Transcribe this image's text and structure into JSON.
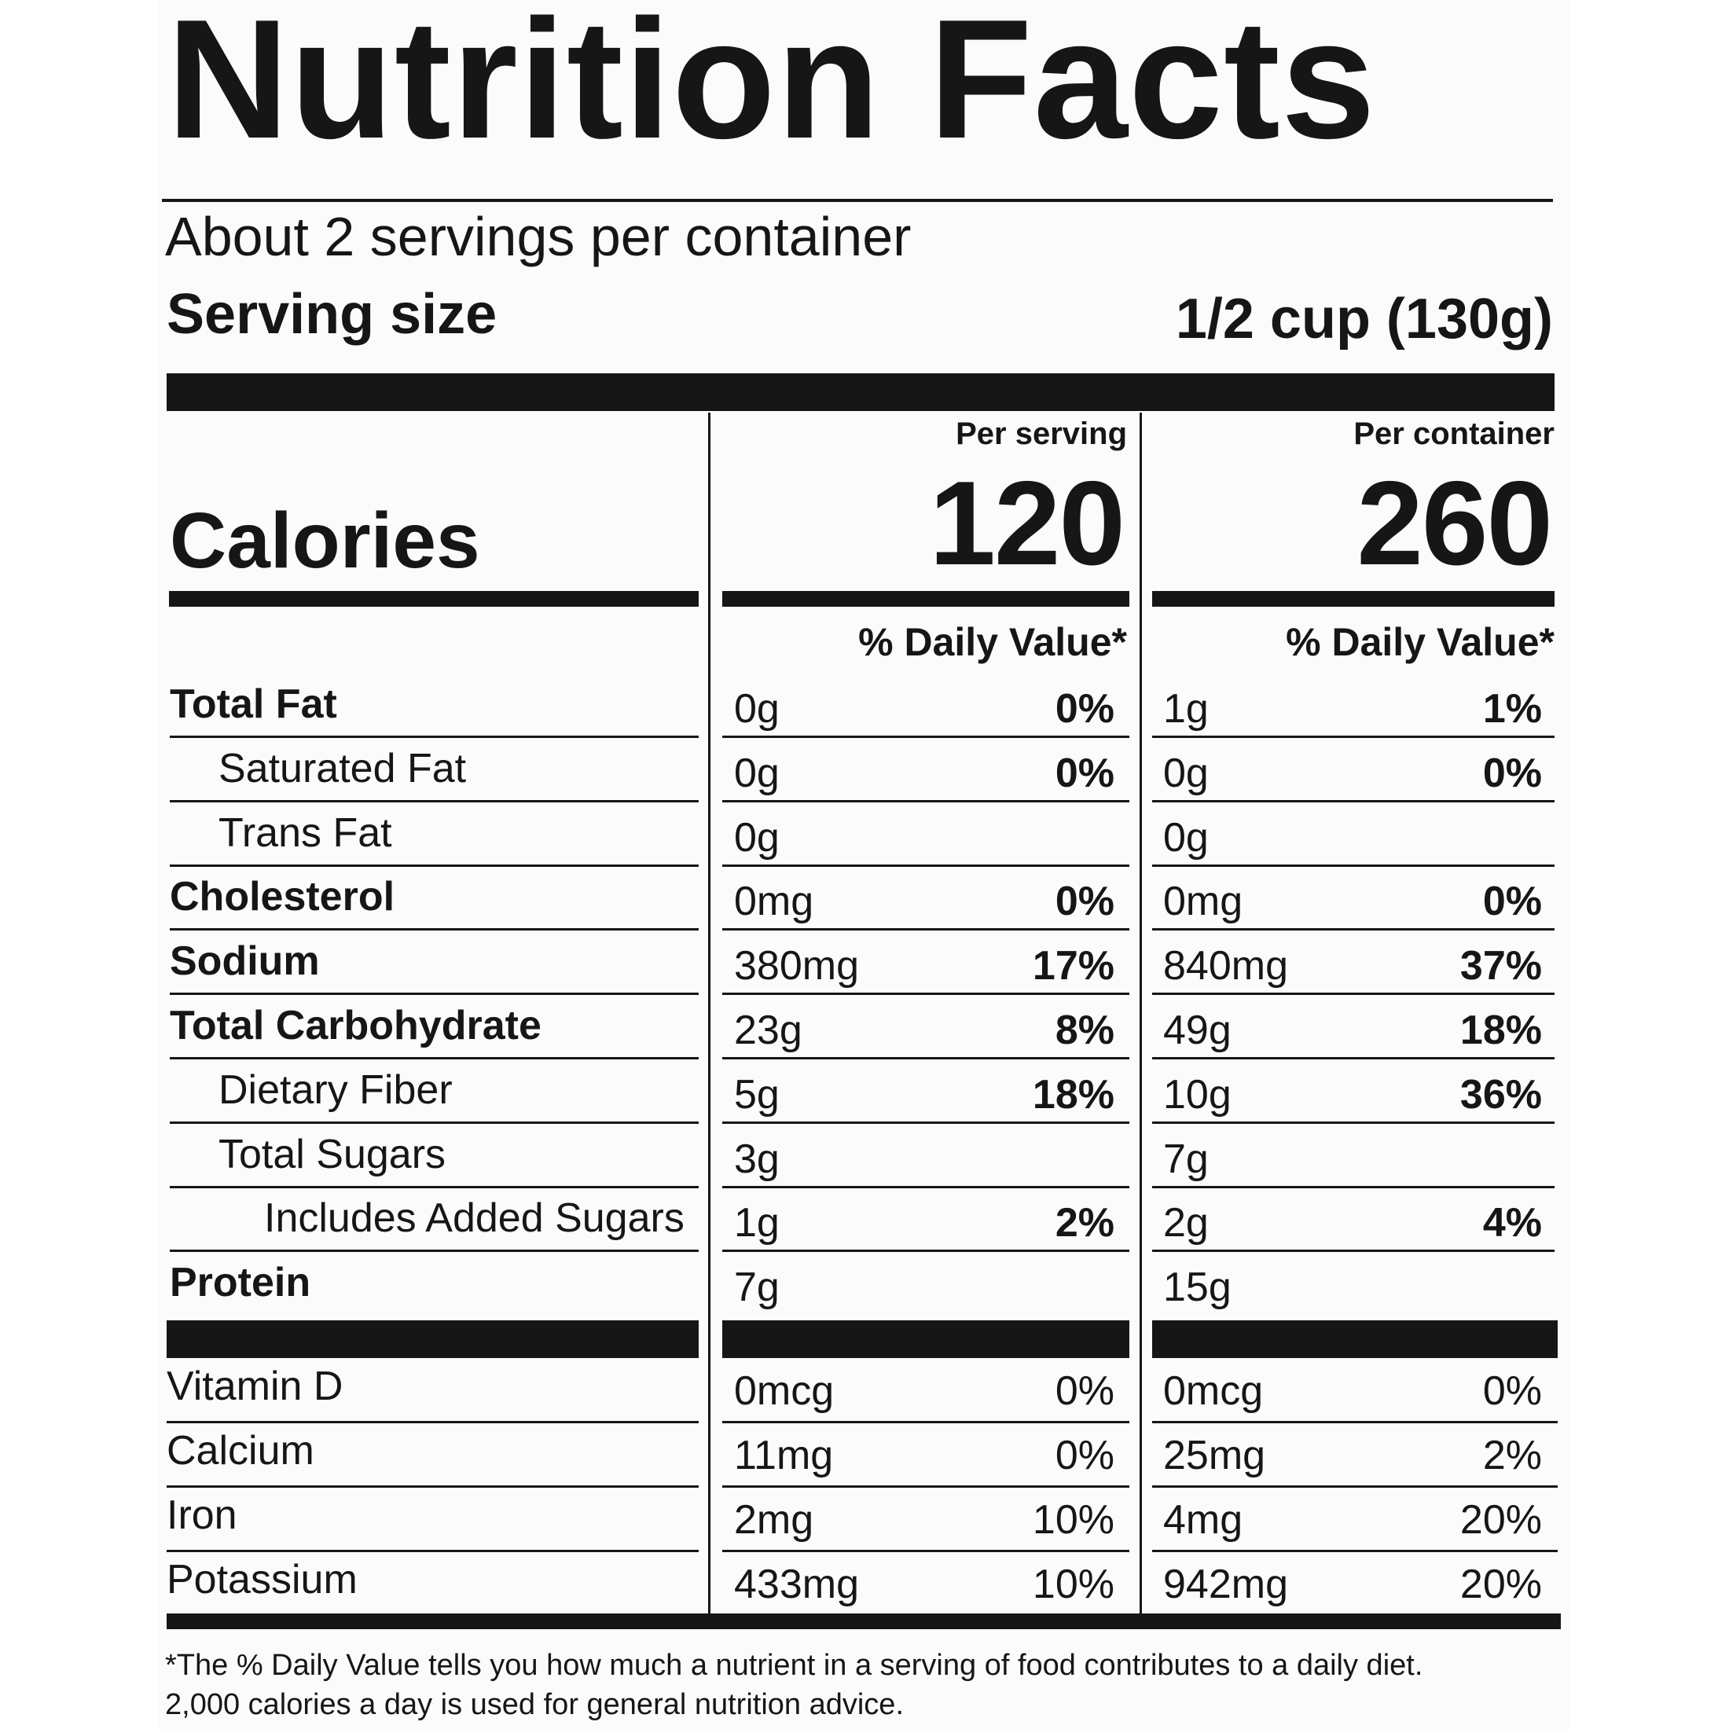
{
  "title": "Nutrition Facts",
  "servings_per_container": "About 2 servings per container",
  "serving_size": {
    "label": "Serving size",
    "value": "1/2 cup (130g)"
  },
  "columns": {
    "per_serving": {
      "header": "Per serving",
      "calories": "120",
      "dv_header": "% Daily Value*"
    },
    "per_container": {
      "header": "Per container",
      "calories": "260",
      "dv_header": "% Daily Value*"
    }
  },
  "calories_label": "Calories",
  "nutrients": [
    {
      "name": "Total Fat",
      "bold": true,
      "indent": 0,
      "serving_amt": "0g",
      "serving_dv": "0%",
      "container_amt": "1g",
      "container_dv": "1%"
    },
    {
      "name": "Saturated Fat",
      "bold": false,
      "indent": 1,
      "serving_amt": "0g",
      "serving_dv": "0%",
      "container_amt": "0g",
      "container_dv": "0%"
    },
    {
      "name": "Trans Fat",
      "bold": false,
      "indent": 1,
      "serving_amt": "0g",
      "serving_dv": "",
      "container_amt": "0g",
      "container_dv": ""
    },
    {
      "name": "Cholesterol",
      "bold": true,
      "indent": 0,
      "serving_amt": "0mg",
      "serving_dv": "0%",
      "container_amt": "0mg",
      "container_dv": "0%"
    },
    {
      "name": "Sodium",
      "bold": true,
      "indent": 0,
      "serving_amt": "380mg",
      "serving_dv": "17%",
      "container_amt": "840mg",
      "container_dv": "37%"
    },
    {
      "name": "Total Carbohydrate",
      "bold": true,
      "indent": 0,
      "serving_amt": "23g",
      "serving_dv": "8%",
      "container_amt": "49g",
      "container_dv": "18%"
    },
    {
      "name": "Dietary Fiber",
      "bold": false,
      "indent": 1,
      "serving_amt": "5g",
      "serving_dv": "18%",
      "container_amt": "10g",
      "container_dv": "36%"
    },
    {
      "name": "Total Sugars",
      "bold": false,
      "indent": 1,
      "serving_amt": "3g",
      "serving_dv": "",
      "container_amt": "7g",
      "container_dv": ""
    },
    {
      "name": "Includes Added Sugars",
      "bold": false,
      "indent": 2,
      "serving_amt": "1g",
      "serving_dv": "2%",
      "container_amt": "2g",
      "container_dv": "4%"
    },
    {
      "name": "Protein",
      "bold": true,
      "indent": 0,
      "serving_amt": "7g",
      "serving_dv": "",
      "container_amt": "15g",
      "container_dv": ""
    }
  ],
  "vitamins": [
    {
      "name": "Vitamin D",
      "serving_amt": "0mcg",
      "serving_dv": "0%",
      "container_amt": "0mcg",
      "container_dv": "0%"
    },
    {
      "name": "Calcium",
      "serving_amt": "11mg",
      "serving_dv": "0%",
      "container_amt": "25mg",
      "container_dv": "2%"
    },
    {
      "name": "Iron",
      "serving_amt": "2mg",
      "serving_dv": "10%",
      "container_amt": "4mg",
      "container_dv": "20%"
    },
    {
      "name": "Potassium",
      "serving_amt": "433mg",
      "serving_dv": "10%",
      "container_amt": "942mg",
      "container_dv": "20%"
    }
  ],
  "footnote": [
    "*The % Daily Value tells you how much a nutrient in a serving of food contributes to a daily diet.",
    "2,000 calories a day is used for general nutrition advice."
  ]
}
